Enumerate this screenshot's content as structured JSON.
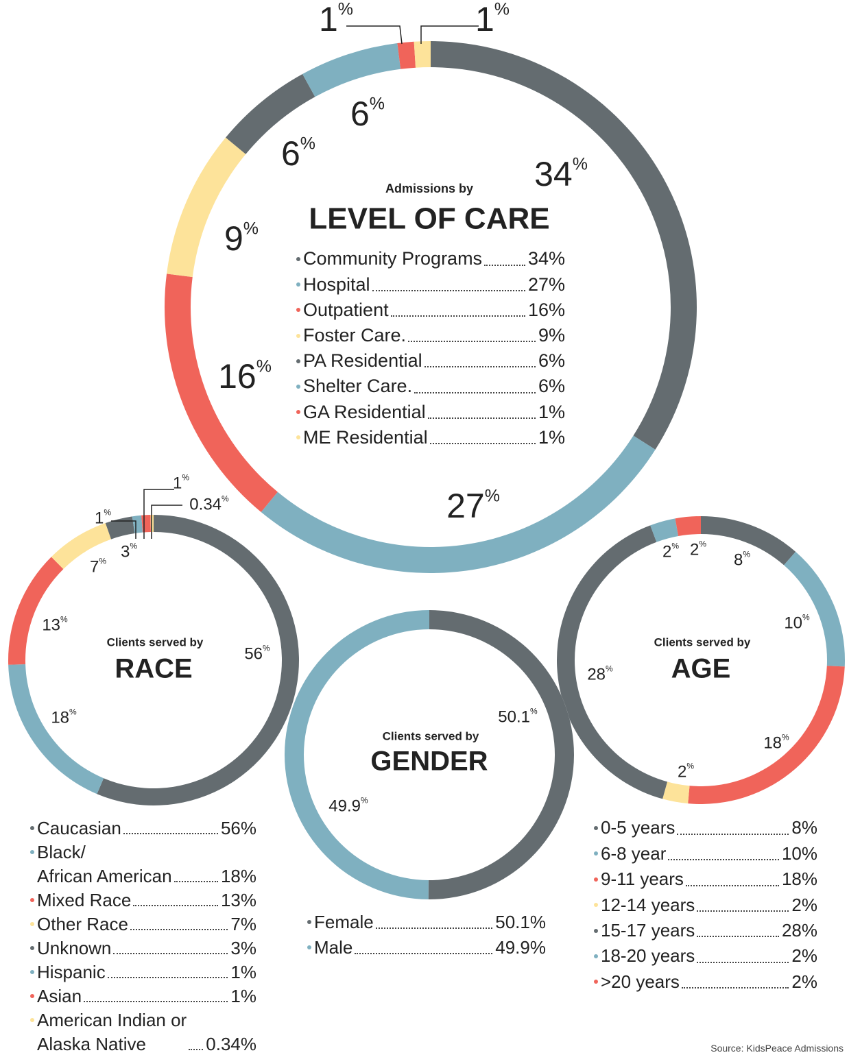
{
  "chart_data": [
    {
      "type": "donut",
      "title": "Admissions by",
      "subtitle": "LEVEL OF CARE",
      "categories": [
        "Community Programs",
        "Hospital",
        "Outpatient",
        "Foster Care.",
        "PA Residential",
        "Shelter Care.",
        "GA Residential",
        "ME Residential"
      ],
      "values": [
        34,
        27,
        16,
        9,
        6,
        6,
        1,
        1
      ],
      "value_labels": [
        "34%",
        "27%",
        "16%",
        "9%",
        "6%",
        "6%",
        "1%",
        "1%"
      ],
      "colors": [
        "#646c70",
        "#7fb0c0",
        "#f0645a",
        "#fde39a",
        "#646c70",
        "#7fb0c0",
        "#f0645a",
        "#fde39a"
      ]
    },
    {
      "type": "donut",
      "title": "Clients served by",
      "subtitle": "RACE",
      "categories": [
        "Caucasian",
        "Black/\nAfrican American",
        "Mixed Race",
        "Other Race",
        "Unknown",
        "Hispanic",
        "Asian",
        "American Indian or\nAlaska Native"
      ],
      "values": [
        56,
        18,
        13,
        7,
        3,
        1,
        1,
        0.34
      ],
      "value_labels": [
        "56%",
        "18%",
        "13%",
        "7%",
        "3%",
        "1%",
        "1%",
        "0.34%"
      ],
      "colors": [
        "#646c70",
        "#7fb0c0",
        "#f0645a",
        "#fde39a",
        "#646c70",
        "#7fb0c0",
        "#f0645a",
        "#fde39a"
      ]
    },
    {
      "type": "donut",
      "title": "Clients served by",
      "subtitle": "GENDER",
      "categories": [
        "Female",
        "Male"
      ],
      "values": [
        50.1,
        49.9
      ],
      "value_labels": [
        "50.1%",
        "49.9%"
      ],
      "colors": [
        "#646c70",
        "#7fb0c0"
      ]
    },
    {
      "type": "donut",
      "title": "Clients served by",
      "subtitle": "AGE",
      "categories": [
        "0-5 years",
        "6-8 year",
        "9-11 years",
        "12-14 years",
        "15-17 years",
        "18-20 years",
        ">20 years"
      ],
      "values": [
        8,
        10,
        18,
        2,
        28,
        2,
        2
      ],
      "value_labels": [
        "8%",
        "10%",
        "18%",
        "2%",
        "28%",
        "2%",
        "2%"
      ],
      "colors": [
        "#646c70",
        "#7fb0c0",
        "#f0645a",
        "#fde39a",
        "#646c70",
        "#7fb0c0",
        "#f0645a"
      ]
    }
  ],
  "source": "Source: KidsPeace Admissions"
}
